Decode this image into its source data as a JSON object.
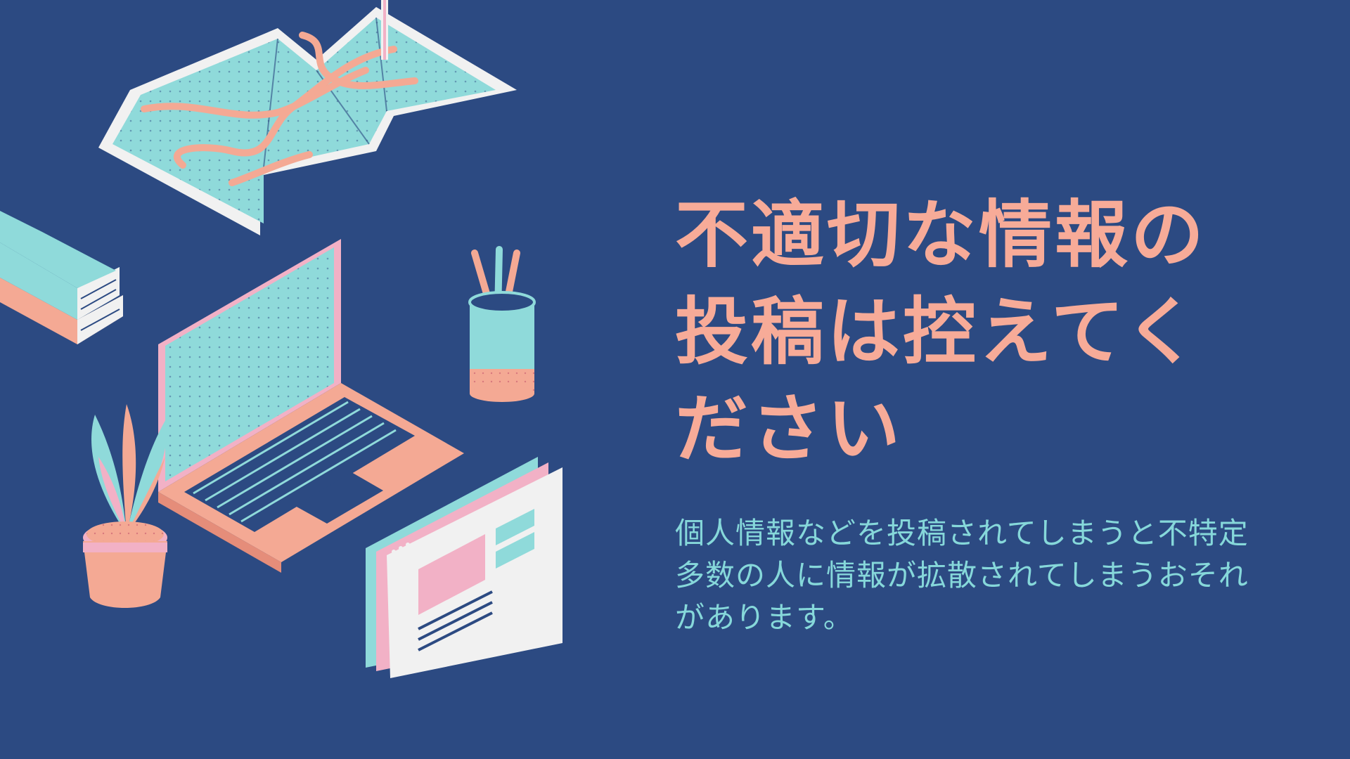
{
  "slide": {
    "headline_lines": [
      "不適切な情報の",
      "投稿は控えてく",
      "ださい"
    ],
    "body_lines": [
      "個人情報などを投稿されてしまうと不特定",
      "多数の人に情報が拡散されてしまうおそれ",
      "があります。"
    ]
  },
  "colors": {
    "background": "#2c4a82",
    "headline": "#f7ab98",
    "body": "#86d8da",
    "accent_teal": "#8fdada",
    "accent_salmon": "#f4a994",
    "accent_pink": "#f2b1c6",
    "accent_white": "#f1f1f1"
  },
  "icons": [
    "folded-map-icon",
    "map-pin-icon",
    "book-stack-icon",
    "laptop-icon",
    "pencil-cup-icon",
    "potted-plant-icon",
    "browser-window-icon"
  ]
}
